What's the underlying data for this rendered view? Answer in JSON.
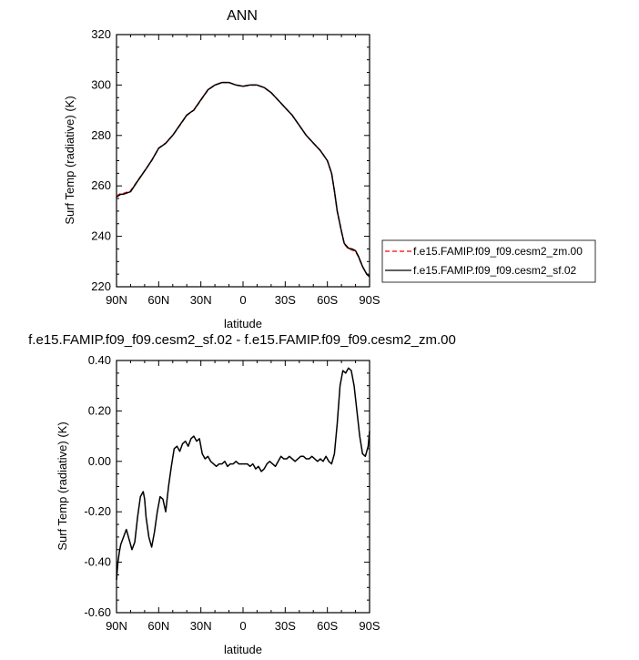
{
  "chart_data": [
    {
      "type": "line",
      "title": "ANN",
      "xlabel": "latitude",
      "ylabel": "Surf Temp (radiative) (K)",
      "xlim": [
        90,
        -90
      ],
      "ylim": [
        220,
        320
      ],
      "xticks": [
        90,
        60,
        30,
        0,
        -30,
        -60,
        -90
      ],
      "xticklabels": [
        "90N",
        "60N",
        "30N",
        "0",
        "30S",
        "60S",
        "90S"
      ],
      "yticks": [
        220,
        240,
        260,
        280,
        300,
        320
      ],
      "yticklabels": [
        "220",
        "240",
        "260",
        "280",
        "300",
        "320"
      ],
      "legend_position": "right",
      "series": [
        {
          "name": "f.e15.FAMIP.f09_f09.cesm2_zm.00",
          "color": "#ff0000",
          "dash": "dashed",
          "x": [
            90,
            87,
            85,
            80,
            75,
            70,
            65,
            60,
            55,
            50,
            45,
            40,
            35,
            30,
            25,
            20,
            15,
            10,
            5,
            0,
            -5,
            -10,
            -15,
            -20,
            -25,
            -30,
            -35,
            -40,
            -45,
            -50,
            -55,
            -60,
            -63,
            -65,
            -67,
            -70,
            -72,
            -75,
            -78,
            -80,
            -82,
            -85,
            -88,
            -90
          ],
          "y": [
            256,
            257,
            257,
            258,
            262,
            266,
            270,
            275,
            277,
            280,
            284,
            288,
            290,
            294,
            298,
            300,
            301,
            301,
            300,
            299.5,
            300,
            300,
            299,
            297,
            294,
            291,
            288,
            284,
            280,
            277,
            274,
            270,
            265,
            258,
            250,
            242,
            237,
            235,
            234.5,
            234,
            232,
            228,
            225,
            224
          ]
        },
        {
          "name": "f.e15.FAMIP.f09_f09.cesm2_sf.02",
          "color": "#000000",
          "dash": "solid",
          "x": [
            90,
            87,
            85,
            80,
            75,
            70,
            65,
            60,
            55,
            50,
            45,
            40,
            35,
            30,
            25,
            20,
            15,
            10,
            5,
            0,
            -5,
            -10,
            -15,
            -20,
            -25,
            -30,
            -35,
            -40,
            -45,
            -50,
            -55,
            -60,
            -63,
            -65,
            -67,
            -70,
            -72,
            -75,
            -78,
            -80,
            -82,
            -85,
            -88,
            -90
          ],
          "y": [
            255.6,
            256.7,
            256.7,
            257.7,
            261.9,
            265.9,
            270.1,
            274.9,
            276.9,
            280.1,
            284.1,
            288.1,
            290.1,
            294.1,
            298.1,
            300,
            301,
            301,
            300,
            299.5,
            300,
            300,
            299,
            297,
            294,
            291,
            288,
            284,
            280,
            277,
            274,
            270,
            265,
            258,
            250,
            242,
            237.2,
            235.3,
            234.9,
            234.3,
            232.2,
            228,
            225,
            224
          ]
        }
      ]
    },
    {
      "type": "line",
      "title": "f.e15.FAMIP.f09_f09.cesm2_sf.02 - f.e15.FAMIP.f09_f09.cesm2_zm.00",
      "xlabel": "latitude",
      "ylabel": "Surf Temp (radiative) (K)",
      "xlim": [
        90,
        -90
      ],
      "ylim": [
        -0.6,
        0.4
      ],
      "xticks": [
        90,
        60,
        30,
        0,
        -30,
        -60,
        -90
      ],
      "xticklabels": [
        "90N",
        "60N",
        "30N",
        "0",
        "30S",
        "60S",
        "90S"
      ],
      "yticks": [
        -0.6,
        -0.4,
        -0.2,
        0,
        0.2,
        0.4
      ],
      "yticklabels": [
        "-0.60",
        "-0.40",
        "-0.20",
        "0.00",
        "0.20",
        "0.40"
      ],
      "series": [
        {
          "color": "#000000",
          "x": [
            90,
            89,
            88,
            87,
            85,
            83,
            81,
            79,
            77,
            75,
            73,
            71,
            70,
            69,
            67,
            65,
            63,
            61,
            59,
            57,
            55,
            53,
            51,
            49,
            47,
            45,
            43,
            41,
            39,
            37,
            35,
            33,
            31,
            29,
            27,
            25,
            23,
            21,
            19,
            17,
            15,
            13,
            11,
            9,
            7,
            5,
            3,
            1,
            -1,
            -3,
            -5,
            -7,
            -9,
            -11,
            -13,
            -15,
            -17,
            -19,
            -21,
            -23,
            -25,
            -27,
            -29,
            -31,
            -33,
            -35,
            -37,
            -39,
            -41,
            -43,
            -45,
            -47,
            -49,
            -51,
            -53,
            -55,
            -57,
            -59,
            -61,
            -63,
            -65,
            -67,
            -69,
            -71,
            -73,
            -75,
            -77,
            -79,
            -81,
            -83,
            -85,
            -87,
            -89,
            -90
          ],
          "y": [
            -0.47,
            -0.4,
            -0.36,
            -0.33,
            -0.3,
            -0.27,
            -0.31,
            -0.35,
            -0.32,
            -0.22,
            -0.14,
            -0.12,
            -0.15,
            -0.22,
            -0.3,
            -0.34,
            -0.28,
            -0.2,
            -0.14,
            -0.15,
            -0.2,
            -0.1,
            -0.02,
            0.05,
            0.06,
            0.04,
            0.07,
            0.08,
            0.06,
            0.09,
            0.1,
            0.08,
            0.09,
            0.03,
            0.01,
            0.02,
            0.0,
            -0.01,
            -0.02,
            -0.01,
            -0.01,
            0.0,
            -0.02,
            -0.01,
            -0.01,
            0.0,
            -0.01,
            -0.01,
            -0.01,
            -0.01,
            -0.02,
            -0.01,
            -0.03,
            -0.02,
            -0.04,
            -0.03,
            -0.01,
            0.0,
            -0.01,
            -0.02,
            0.0,
            0.02,
            0.01,
            0.01,
            0.02,
            0.01,
            0.0,
            0.01,
            0.02,
            0.02,
            0.01,
            0.01,
            0.02,
            0.01,
            0.0,
            0.01,
            0.0,
            0.02,
            0.0,
            -0.01,
            0.03,
            0.15,
            0.3,
            0.36,
            0.35,
            0.37,
            0.36,
            0.3,
            0.2,
            0.1,
            0.03,
            0.02,
            0.06,
            0.12
          ]
        }
      ]
    }
  ]
}
